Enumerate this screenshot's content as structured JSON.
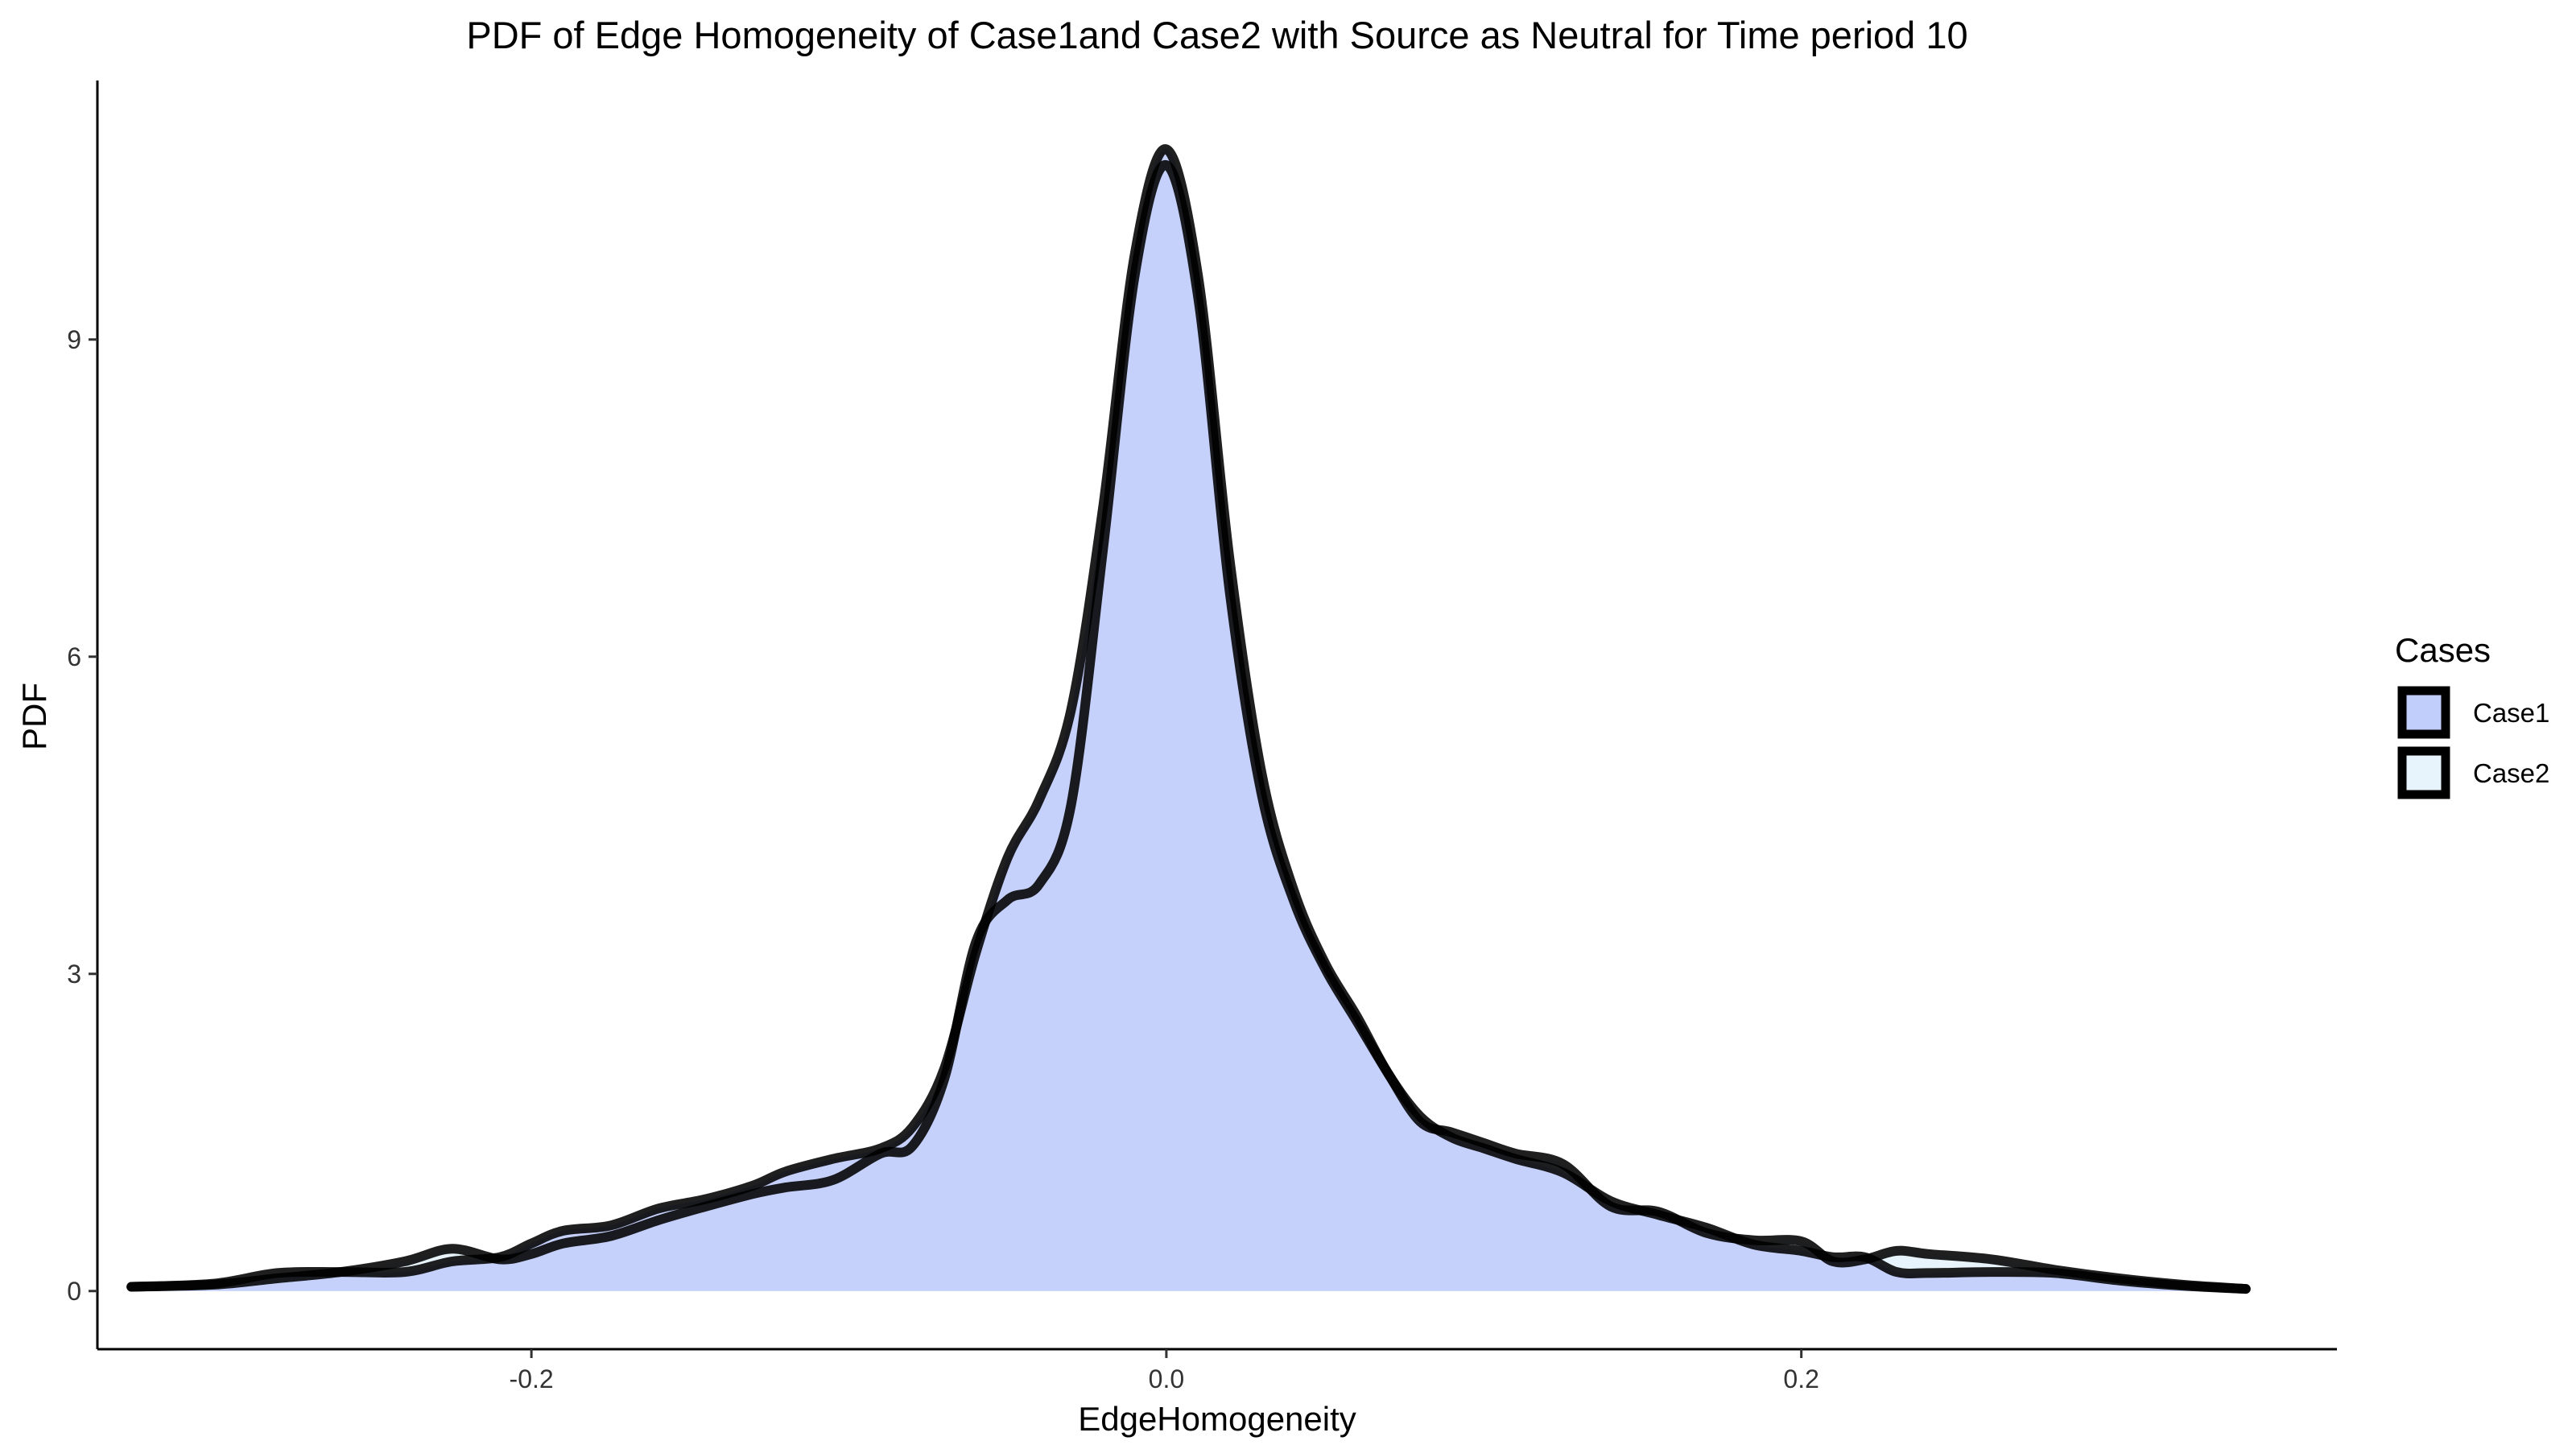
{
  "chart_data": {
    "type": "area",
    "title": "PDF of Edge Homogeneity of Case1and Case2 with Source as Neutral for Time period 10",
    "xlabel": "EdgeHomogeneity",
    "ylabel": "PDF",
    "xlim": [
      -0.3367,
      0.3687
    ],
    "ylim": [
      -0.55,
      11.45
    ],
    "x_ticks": [
      {
        "value": -0.2,
        "label": "-0.2"
      },
      {
        "value": 0.0,
        "label": "0.0"
      },
      {
        "value": 0.2,
        "label": "0.2"
      }
    ],
    "y_ticks": [
      {
        "value": 0,
        "label": "0"
      },
      {
        "value": 3,
        "label": "3"
      },
      {
        "value": 6,
        "label": "6"
      },
      {
        "value": 9,
        "label": "9"
      }
    ],
    "grid": false,
    "legend": {
      "title": "Cases",
      "position": "right"
    },
    "series": [
      {
        "name": "Case1",
        "fill": "#c1cdfb",
        "x": [
          -0.326,
          -0.3,
          -0.28,
          -0.26,
          -0.24,
          -0.225,
          -0.21,
          -0.2,
          -0.19,
          -0.175,
          -0.16,
          -0.145,
          -0.13,
          -0.12,
          -0.105,
          -0.09,
          -0.08,
          -0.07,
          -0.06,
          -0.05,
          -0.04,
          -0.03,
          -0.02,
          -0.01,
          0.0,
          0.01,
          0.02,
          0.03,
          0.04,
          0.05,
          0.06,
          0.07,
          0.08,
          0.09,
          0.1,
          0.11,
          0.125,
          0.14,
          0.155,
          0.17,
          0.185,
          0.2,
          0.21,
          0.22,
          0.23,
          0.24,
          0.26,
          0.28,
          0.3,
          0.32,
          0.34
        ],
        "y": [
          0.04,
          0.07,
          0.17,
          0.18,
          0.18,
          0.28,
          0.32,
          0.45,
          0.57,
          0.62,
          0.78,
          0.87,
          1.0,
          1.13,
          1.25,
          1.35,
          1.55,
          2.1,
          3.2,
          4.1,
          4.65,
          5.5,
          7.4,
          9.8,
          10.8,
          9.6,
          6.9,
          4.9,
          3.8,
          3.1,
          2.6,
          2.05,
          1.65,
          1.45,
          1.35,
          1.25,
          1.12,
          0.85,
          0.72,
          0.6,
          0.44,
          0.38,
          0.32,
          0.32,
          0.18,
          0.17,
          0.18,
          0.17,
          0.1,
          0.05,
          0.02
        ]
      },
      {
        "name": "Case2",
        "fill": "#e8f4fb",
        "x": [
          -0.326,
          -0.3,
          -0.28,
          -0.26,
          -0.24,
          -0.225,
          -0.21,
          -0.2,
          -0.19,
          -0.175,
          -0.16,
          -0.145,
          -0.13,
          -0.12,
          -0.105,
          -0.09,
          -0.08,
          -0.07,
          -0.06,
          -0.05,
          -0.04,
          -0.03,
          -0.02,
          -0.01,
          0.0,
          0.01,
          0.02,
          0.03,
          0.04,
          0.05,
          0.06,
          0.07,
          0.08,
          0.09,
          0.1,
          0.11,
          0.125,
          0.14,
          0.155,
          0.17,
          0.185,
          0.2,
          0.21,
          0.22,
          0.23,
          0.24,
          0.26,
          0.28,
          0.3,
          0.32,
          0.34
        ],
        "y": [
          0.04,
          0.06,
          0.12,
          0.18,
          0.28,
          0.4,
          0.3,
          0.35,
          0.45,
          0.52,
          0.67,
          0.8,
          0.92,
          0.98,
          1.05,
          1.3,
          1.37,
          2.0,
          3.3,
          3.7,
          3.85,
          4.6,
          7.0,
          9.6,
          10.65,
          9.4,
          6.6,
          4.7,
          3.7,
          3.05,
          2.55,
          2.05,
          1.6,
          1.5,
          1.4,
          1.3,
          1.2,
          0.8,
          0.75,
          0.55,
          0.48,
          0.47,
          0.28,
          0.3,
          0.38,
          0.35,
          0.3,
          0.2,
          0.12,
          0.06,
          0.02
        ]
      }
    ]
  }
}
